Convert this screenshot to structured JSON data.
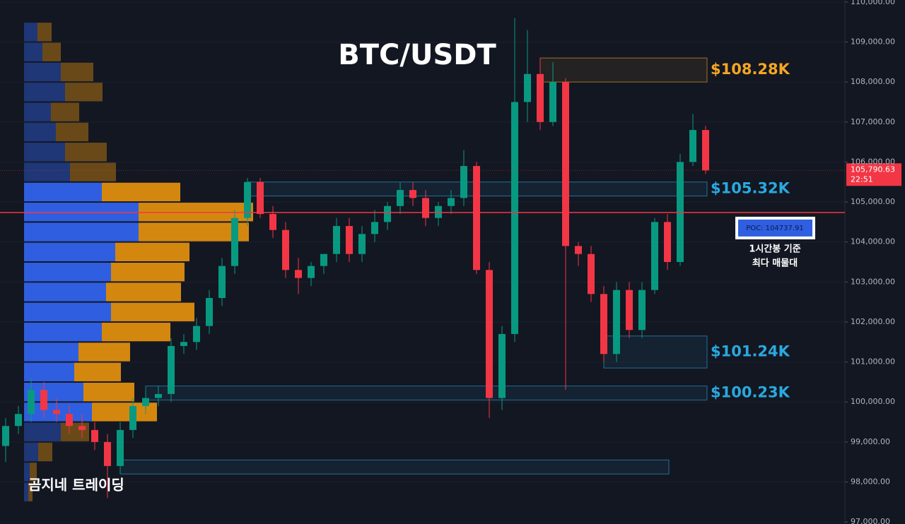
{
  "chart_data": {
    "type": "candlestick",
    "title": "BTC/USDT",
    "watermark": "곰지네 트레이딩",
    "ylim": [
      96950,
      110050
    ],
    "yticks": [
      {
        "value": 97000,
        "label": "97,000.00"
      },
      {
        "value": 98000,
        "label": "98,000.00"
      },
      {
        "value": 99000,
        "label": "99,000.00"
      },
      {
        "value": 100000,
        "label": "100,000.00"
      },
      {
        "value": 101000,
        "label": "101,000.00"
      },
      {
        "value": 102000,
        "label": "102,000.00"
      },
      {
        "value": 103000,
        "label": "103,000.00"
      },
      {
        "value": 104000,
        "label": "104,000.00"
      },
      {
        "value": 105000,
        "label": "105,000.00"
      },
      {
        "value": 106000,
        "label": "106,000.00"
      },
      {
        "value": 107000,
        "label": "107,000.00"
      },
      {
        "value": 108000,
        "label": "108,000.00"
      },
      {
        "value": 109000,
        "label": "109,000.00"
      },
      {
        "value": 110000,
        "label": "110,000.00"
      }
    ],
    "up_color": "#089981",
    "down_color": "#f23645",
    "open": [
      98900,
      99400,
      99700,
      100300,
      99800,
      99700,
      99400,
      99300,
      99000,
      98400,
      99300,
      99900,
      100100,
      100200,
      101400,
      101500,
      101900,
      102600,
      103400,
      104600,
      105500,
      104700,
      104300,
      103300,
      103100,
      103400,
      103700,
      104400,
      103700,
      104200,
      104500,
      104900,
      105300,
      105100,
      104600,
      104900,
      105100,
      105900,
      103300,
      100100,
      101700,
      107500,
      108200,
      107000,
      108000,
      103900,
      103700,
      102700,
      101200,
      102800,
      101800,
      102800,
      104500,
      103500,
      106000,
      106800
    ],
    "high": [
      99600,
      99900,
      100600,
      100500,
      100100,
      99900,
      99700,
      99500,
      99200,
      99500,
      100100,
      100300,
      100400,
      101600,
      101700,
      102100,
      102800,
      103600,
      104800,
      105600,
      105600,
      104900,
      104500,
      103600,
      103500,
      103700,
      104600,
      104600,
      104400,
      104800,
      105000,
      105500,
      105500,
      105300,
      105000,
      105300,
      106300,
      106000,
      103500,
      101900,
      109600,
      109300,
      108600,
      108500,
      108100,
      104000,
      103900,
      102900,
      103000,
      103000,
      103000,
      104600,
      104700,
      106200,
      107200,
      106900
    ],
    "low": [
      98500,
      99200,
      99500,
      99600,
      99500,
      99200,
      99100,
      98800,
      97600,
      98200,
      99100,
      99700,
      99900,
      100000,
      101200,
      101300,
      101700,
      102400,
      103200,
      104400,
      104600,
      104100,
      103100,
      102700,
      102900,
      103200,
      103500,
      103500,
      103500,
      104000,
      104300,
      104700,
      104900,
      104400,
      104400,
      104700,
      104900,
      103200,
      99600,
      99800,
      101500,
      107000,
      106800,
      106900,
      100300,
      103400,
      102500,
      101000,
      101000,
      101600,
      101600,
      102700,
      103300,
      103400,
      105900,
      105700
    ],
    "close": [
      99400,
      99700,
      100300,
      99800,
      99700,
      99400,
      99300,
      99000,
      98400,
      99300,
      99900,
      100100,
      100200,
      101400,
      101500,
      101900,
      102600,
      103400,
      104600,
      105500,
      104700,
      104300,
      103300,
      103100,
      103400,
      103700,
      104400,
      103700,
      104200,
      104500,
      104900,
      105300,
      105100,
      104600,
      104900,
      105100,
      105900,
      103300,
      100100,
      101700,
      107500,
      108200,
      107000,
      108000,
      103900,
      103700,
      102700,
      101200,
      102800,
      101800,
      102800,
      104500,
      103500,
      106000,
      106800,
      105790.63
    ],
    "last_price": {
      "value": 105790.63,
      "label": "105,790.63"
    },
    "countdown": "22:51",
    "volume_profile": {
      "levels": [
        109250,
        108750,
        108250,
        107750,
        107250,
        106750,
        106250,
        105750,
        105250,
        104750,
        104250,
        103750,
        103250,
        102750,
        102250,
        101750,
        101250,
        100750,
        100250,
        99750,
        99250,
        98750,
        98250,
        97750
      ],
      "buy": [
        19,
        26,
        52,
        58,
        38,
        45,
        58,
        65,
        110,
        162,
        162,
        129,
        123,
        116,
        123,
        110,
        77,
        71,
        84,
        96,
        52,
        20,
        8,
        6
      ],
      "sell": [
        20,
        26,
        46,
        53,
        40,
        46,
        59,
        65,
        111,
        162,
        156,
        105,
        104,
        106,
        118,
        97,
        73,
        66,
        72,
        92,
        40,
        20,
        10,
        6
      ],
      "value_area": [
        99500,
        105500
      ],
      "buy_color": "#2f5fe0",
      "sell_color": "#d4870f"
    },
    "poc": {
      "value": 104737.91,
      "label": "POC: 104737.91",
      "color": "#f23645"
    },
    "poc_note": [
      "1시간봉 기준",
      "최다 매물대"
    ],
    "zones": [
      {
        "label": "$108.28K",
        "low": 108000,
        "high": 108600,
        "from": 42,
        "to": 55,
        "color": "#f5a623"
      },
      {
        "label": "$105.32K",
        "low": 105150,
        "high": 105500,
        "from": 19,
        "to": 55,
        "color": "#29a9e0"
      },
      {
        "label": "$101.24K",
        "low": 100850,
        "high": 101650,
        "from": 47,
        "to": 55,
        "color": "#29a9e0"
      },
      {
        "label": "$100.23K",
        "low": 100050,
        "high": 100400,
        "from": 11,
        "to": 55,
        "color": "#29a9e0"
      },
      {
        "low": 98200,
        "high": 98550,
        "from": 9,
        "to": 52,
        "color": "#29a9e0"
      }
    ]
  }
}
